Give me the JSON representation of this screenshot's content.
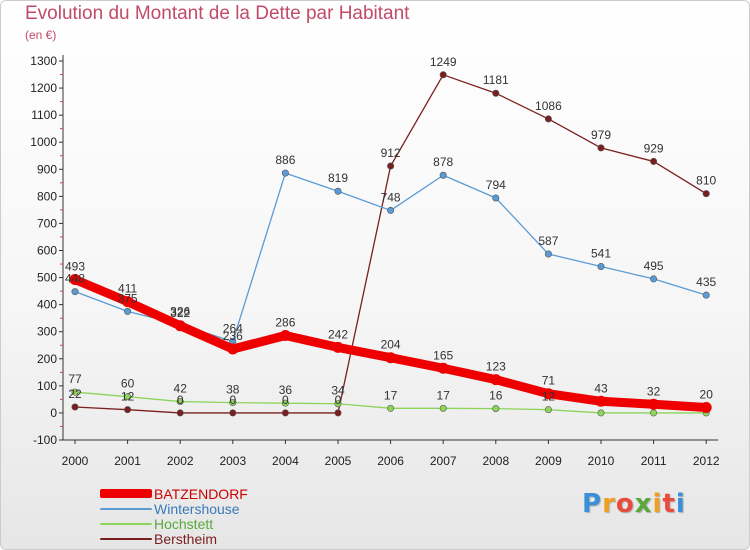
{
  "header": {
    "title": "Evolution du Montant de la Dette par Habitant",
    "subtitle": "(en €)"
  },
  "chart_data": {
    "type": "line",
    "title": "Evolution du Montant de la Dette par Habitant",
    "subtitle": "(en €)",
    "xlabel": "",
    "ylabel": "",
    "ylim": [
      -100,
      1300
    ],
    "yticks": [
      -100,
      0,
      100,
      200,
      300,
      400,
      500,
      600,
      700,
      800,
      900,
      1000,
      1100,
      1200,
      1300
    ],
    "grid": false,
    "legend_position": "bottom-left",
    "x": [
      "2000",
      "2001",
      "2002",
      "2003",
      "2004",
      "2005",
      "2006",
      "2007",
      "2008",
      "2009",
      "2010",
      "2011",
      "2012"
    ],
    "series": [
      {
        "name": "BATZENDORF",
        "color": "#ee0000",
        "values": [
          493,
          411,
          322,
          236,
          286,
          242,
          204,
          165,
          123,
          71,
          43,
          32,
          20
        ],
        "labels": [
          "493",
          "411",
          "322",
          "236",
          "286",
          "242",
          "204",
          "165",
          "123",
          "71",
          "43",
          "32",
          "20"
        ]
      },
      {
        "name": "Wintershouse",
        "color": "#5b9bd5",
        "values": [
          448,
          375,
          326,
          264,
          886,
          819,
          748,
          878,
          794,
          587,
          541,
          495,
          435
        ],
        "labels": [
          "448",
          "375",
          "326",
          "264",
          "886",
          "819",
          "748",
          "878",
          "794",
          "587",
          "541",
          "495",
          "435"
        ]
      },
      {
        "name": "Hochstett",
        "color": "#8ed45a",
        "values": [
          77,
          60,
          42,
          38,
          36,
          34,
          17,
          17,
          16,
          12,
          0,
          0,
          0
        ],
        "labels": [
          "77",
          "60",
          "42",
          "38",
          "36",
          "34",
          "17",
          "17",
          "16",
          "12",
          "",
          "",
          ""
        ]
      },
      {
        "name": "Berstheim",
        "color": "#7a1f1f",
        "values": [
          22,
          12,
          0,
          0,
          0,
          0,
          912,
          1249,
          1181,
          1086,
          979,
          929,
          810
        ],
        "labels": [
          "22",
          "12",
          "0",
          "0",
          "0",
          "0",
          "912",
          "1249",
          "1181",
          "1086",
          "979",
          "929",
          "810"
        ]
      }
    ]
  },
  "logo": {
    "letters": [
      "P",
      "r",
      "o",
      "x",
      "i",
      "t",
      "i"
    ],
    "colors": [
      "#3a8fd8",
      "#f0a020",
      "#e84b3c",
      "#5aa83c",
      "#f0a020",
      "#e84b3c",
      "#3a8fd8"
    ]
  }
}
